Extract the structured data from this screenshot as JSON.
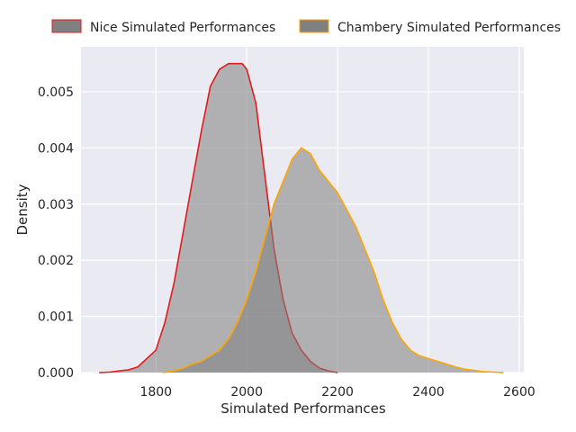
{
  "chart_data": {
    "type": "area",
    "subtype": "kde",
    "xlabel": "Simulated Performances",
    "ylabel": "Density",
    "xlim": [
      1635,
      2610
    ],
    "ylim": [
      0,
      0.0058
    ],
    "x_ticks": [
      1800,
      2000,
      2200,
      2400,
      2600
    ],
    "x_tick_labels": [
      "1800",
      "2000",
      "2200",
      "2400",
      "2600"
    ],
    "y_ticks": [
      0,
      0.001,
      0.002,
      0.003,
      0.004,
      0.005
    ],
    "y_tick_labels": [
      "0.000",
      "0.001",
      "0.002",
      "0.003",
      "0.004",
      "0.005"
    ],
    "grid": true,
    "legend_placement": "top-center",
    "background": "#eaeaf2",
    "fill_color": "#808080",
    "series": [
      {
        "name": "Nice Simulated Performances",
        "color": "#e41a1c",
        "fill_opacity": 0.55,
        "x": [
          1675,
          1700,
          1740,
          1760,
          1800,
          1820,
          1840,
          1860,
          1880,
          1900,
          1920,
          1940,
          1960,
          1980,
          1990,
          2000,
          2020,
          2040,
          2060,
          2080,
          2100,
          2120,
          2140,
          2160,
          2180,
          2200
        ],
        "y": [
          0.0,
          1e-05,
          5e-05,
          0.0001,
          0.0004,
          0.0009,
          0.0016,
          0.0025,
          0.0034,
          0.0043,
          0.0051,
          0.0054,
          0.0055,
          0.0055,
          0.0055,
          0.0054,
          0.0048,
          0.0035,
          0.0022,
          0.0013,
          0.0007,
          0.0004,
          0.0002,
          8e-05,
          3e-05,
          0.0
        ]
      },
      {
        "name": "Chambery Simulated Performances",
        "color": "#ffa500",
        "fill_opacity": 0.55,
        "x": [
          1815,
          1840,
          1860,
          1880,
          1900,
          1920,
          1940,
          1960,
          1980,
          2000,
          2020,
          2040,
          2060,
          2080,
          2100,
          2120,
          2140,
          2160,
          2180,
          2200,
          2220,
          2240,
          2260,
          2280,
          2300,
          2320,
          2340,
          2360,
          2380,
          2400,
          2420,
          2440,
          2460,
          2480,
          2500,
          2520,
          2540,
          2565
        ],
        "y": [
          0.0,
          3e-05,
          8e-05,
          0.00015,
          0.0002,
          0.0003,
          0.0004,
          0.0006,
          0.0009,
          0.0013,
          0.0018,
          0.0024,
          0.003,
          0.0034,
          0.0038,
          0.004,
          0.0039,
          0.0036,
          0.0034,
          0.0032,
          0.0029,
          0.0026,
          0.0022,
          0.0018,
          0.0013,
          0.0009,
          0.0006,
          0.0004,
          0.0003,
          0.00025,
          0.0002,
          0.00015,
          0.0001,
          6e-05,
          4e-05,
          2e-05,
          1e-05,
          0.0
        ]
      }
    ]
  }
}
